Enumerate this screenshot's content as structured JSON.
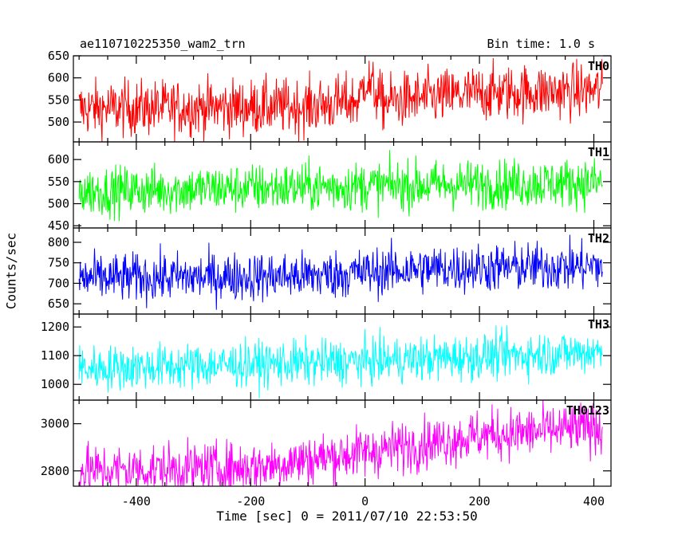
{
  "header": {
    "left_title": "ae110710225350_wam2_trn",
    "right_title": "Bin time: 1.0 s"
  },
  "chart_data": {
    "type": "line",
    "xlabel": "Time [sec] 0 = 2011/07/10 22:53:50",
    "ylabel": "Counts/sec",
    "x_range": [
      -510,
      430
    ],
    "x_ticks": [
      -400,
      -200,
      0,
      200,
      400
    ],
    "x_data_range": [
      -500,
      415
    ],
    "bin_time_s": 1.0,
    "grid": false,
    "panels": [
      {
        "name": "TH0",
        "color": "#ff0000",
        "ylim": [
          455,
          650
        ],
        "yticks": [
          500,
          550,
          600,
          650
        ],
        "trend": [
          [
            -500,
            530
          ],
          [
            -100,
            535
          ],
          [
            -10,
            548
          ],
          [
            0,
            600
          ],
          [
            30,
            545
          ],
          [
            200,
            565
          ],
          [
            415,
            572
          ]
        ],
        "noise": 32
      },
      {
        "name": "TH1",
        "color": "#00ff00",
        "ylim": [
          445,
          640
        ],
        "yticks": [
          450,
          500,
          550,
          600
        ],
        "trend": [
          [
            -500,
            528
          ],
          [
            0,
            540
          ],
          [
            415,
            548
          ]
        ],
        "noise": 28
      },
      {
        "name": "TH2",
        "color": "#0000ff",
        "ylim": [
          625,
          835
        ],
        "yticks": [
          650,
          700,
          750,
          800
        ],
        "trend": [
          [
            -500,
            712
          ],
          [
            -100,
            718
          ],
          [
            100,
            735
          ],
          [
            415,
            742
          ]
        ],
        "noise": 30
      },
      {
        "name": "TH3",
        "color": "#00ffff",
        "ylim": [
          945,
          1245
        ],
        "yticks": [
          1000,
          1100,
          1200
        ],
        "trend": [
          [
            -500,
            1055
          ],
          [
            0,
            1080
          ],
          [
            415,
            1115
          ]
        ],
        "noise": 40
      },
      {
        "name": "TH0123",
        "color": "#ff00ff",
        "ylim": [
          2735,
          3100
        ],
        "yticks": [
          2800,
          3000
        ],
        "trend": [
          [
            -500,
            2800
          ],
          [
            -200,
            2815
          ],
          [
            0,
            2880
          ],
          [
            200,
            2950
          ],
          [
            415,
            2985
          ]
        ],
        "noise": 55
      }
    ]
  }
}
